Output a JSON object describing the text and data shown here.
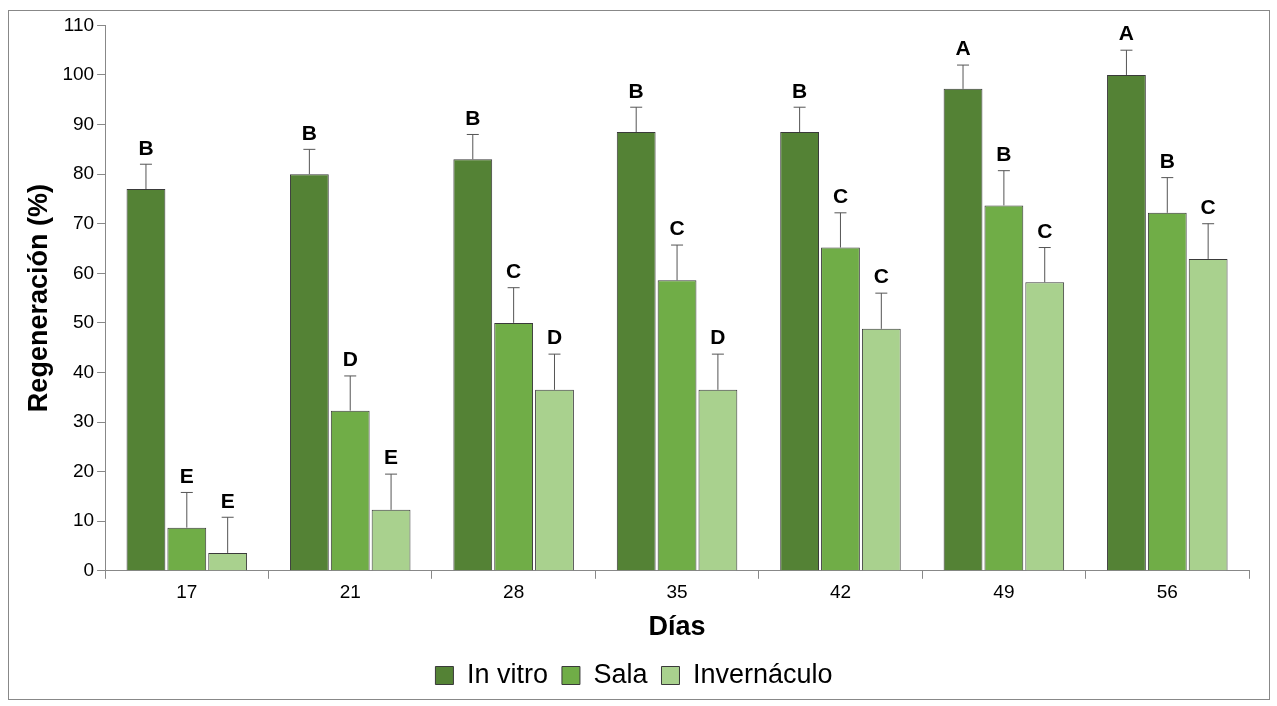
{
  "chart_data": {
    "type": "bar",
    "xlabel": "Días",
    "ylabel": "Regeneración (%)",
    "categories": [
      "17",
      "21",
      "28",
      "35",
      "42",
      "49",
      "56"
    ],
    "series": [
      {
        "name": "In vitro",
        "color": "#548235",
        "values": [
          77,
          80,
          83,
          88.5,
          88.5,
          97.2,
          100
        ],
        "errors": [
          [
            77,
            82
          ],
          [
            80,
            85
          ],
          [
            83,
            88
          ],
          [
            88.5,
            93.5
          ],
          [
            88.5,
            93.5
          ],
          [
            97.2,
            102
          ],
          [
            100,
            105
          ]
        ],
        "value_labels": [
          "B",
          "B",
          "B",
          "B",
          "B",
          "A",
          "A"
        ]
      },
      {
        "name": "Sala",
        "color": "#70ad47",
        "values": [
          8.7,
          32.3,
          50,
          58.6,
          65.2,
          73.7,
          72.2
        ],
        "errors": [
          [
            8.7,
            15.8
          ],
          [
            32.3,
            39.3
          ],
          [
            50,
            57.1
          ],
          [
            58.6,
            65.7
          ],
          [
            65.2,
            72.2
          ],
          [
            73.7,
            80.7
          ],
          [
            72.2,
            79.3
          ]
        ],
        "value_labels": [
          "E",
          "D",
          "C",
          "C",
          "C",
          "B",
          "B"
        ]
      },
      {
        "name": "Invernáculo",
        "color": "#a9d18e",
        "values": [
          3.6,
          12.3,
          36.5,
          36.5,
          48.8,
          58.2,
          62.9
        ],
        "errors": [
          [
            3.6,
            10.8
          ],
          [
            12.3,
            19.5
          ],
          [
            36.5,
            43.7
          ],
          [
            36.5,
            43.7
          ],
          [
            48.8,
            56
          ],
          [
            58.2,
            65.2
          ],
          [
            62.9,
            70
          ]
        ],
        "value_labels": [
          "E",
          "E",
          "D",
          "D",
          "C",
          "C",
          "C"
        ]
      }
    ],
    "ylim": [
      0,
      110
    ],
    "yticks": [
      0,
      10,
      20,
      30,
      40,
      50,
      60,
      70,
      80,
      90,
      100,
      110
    ],
    "legend": "bottom"
  }
}
